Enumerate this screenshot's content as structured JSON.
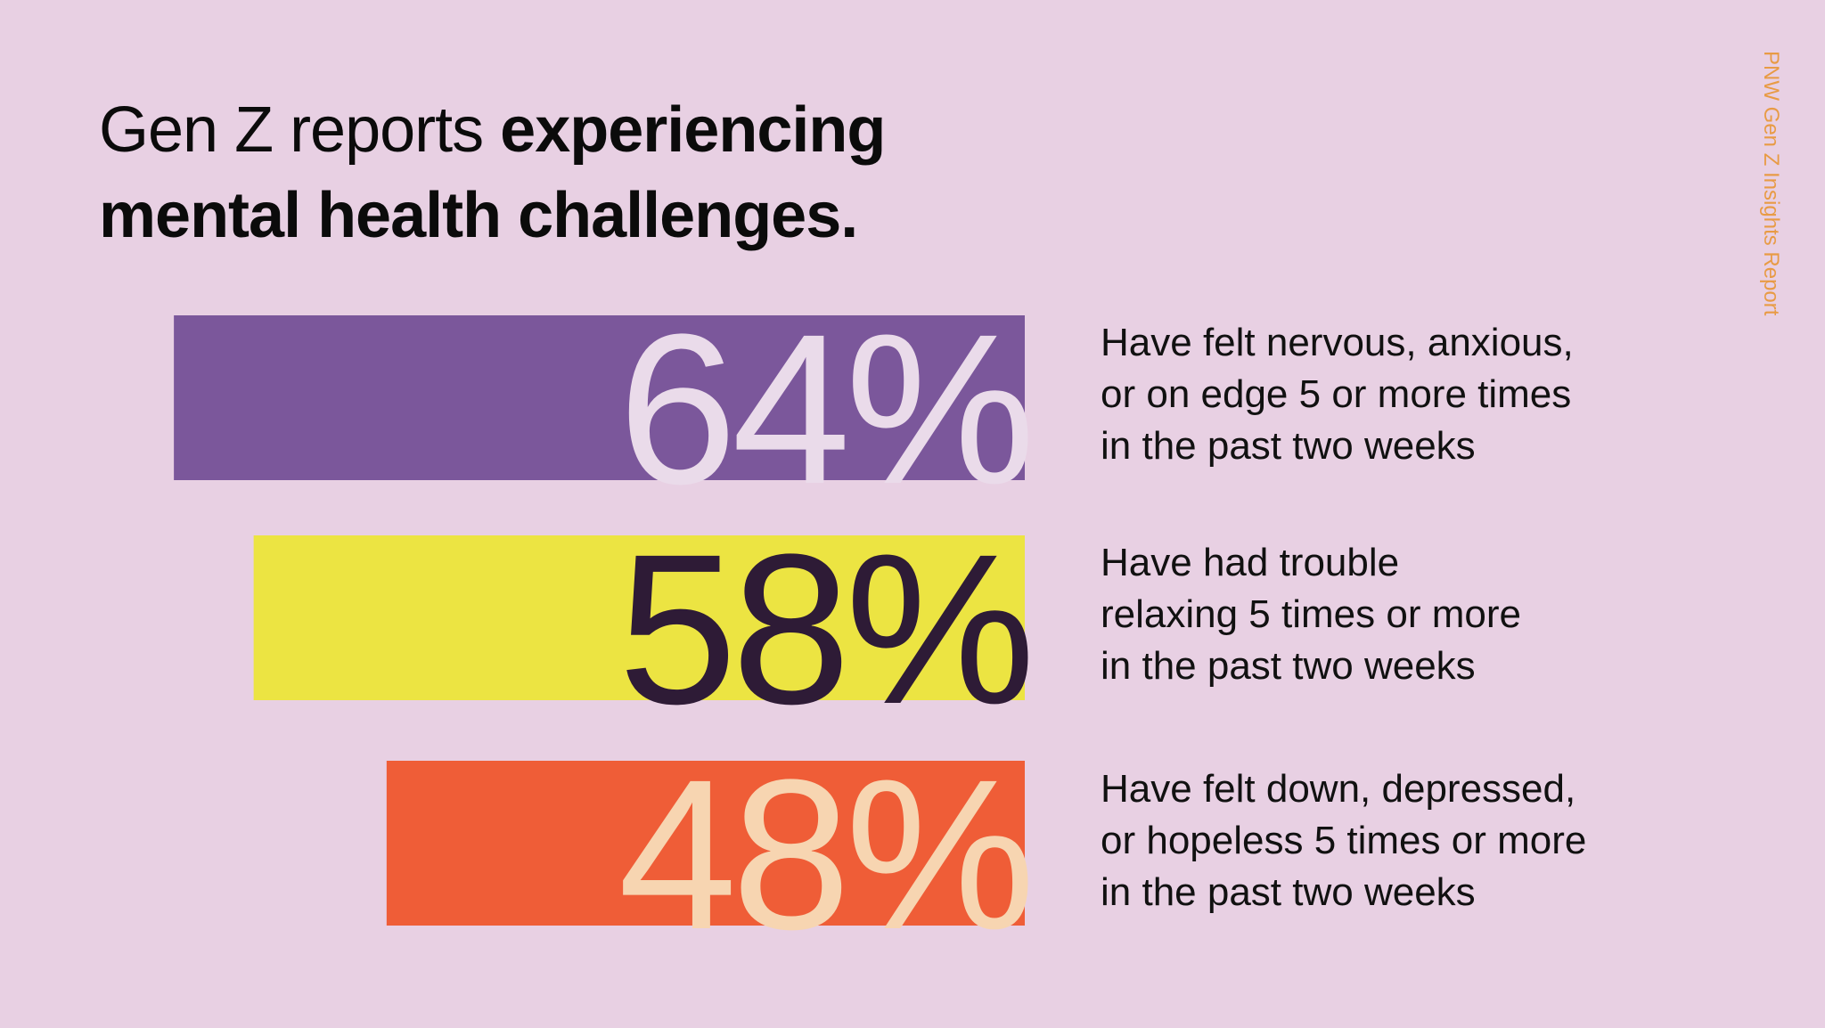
{
  "title": {
    "regular": "Gen Z reports ",
    "bold_line1": "experiencing",
    "bold_line2": "mental health challenges."
  },
  "side_label": "PNW Gen Z Insights Report",
  "colors": {
    "background": "#e8d0e3",
    "title": "#0b0b0b",
    "side_label": "#e89b45"
  },
  "chart_data": {
    "type": "bar",
    "orientation": "horizontal",
    "max": 100,
    "categories": [
      "Have felt nervous, anxious, or on edge 5 or more times in the past two weeks",
      "Have had trouble relaxing 5 times or more in the past two weeks",
      "Have felt down, depressed, or hopeless 5 times or more in the past two weeks"
    ],
    "values": [
      64,
      58,
      48
    ],
    "value_labels": [
      "64%",
      "58%",
      "48%"
    ],
    "bar_colors": [
      "#7b579b",
      "#ece442",
      "#ef5d37"
    ],
    "value_label_colors": [
      "#eadbea",
      "#2e1b36",
      "#f7d5b1"
    ]
  },
  "labels": [
    {
      "line1": "Have felt nervous, anxious,",
      "line2": "or on edge 5 or more times",
      "line3": "in the past two weeks"
    },
    {
      "line1": "Have had trouble",
      "line2": "relaxing 5 times or more",
      "line3": "in the past two weeks"
    },
    {
      "line1": "Have felt down, depressed,",
      "line2": "or hopeless 5 times or more",
      "line3": "in the past two weeks"
    }
  ]
}
